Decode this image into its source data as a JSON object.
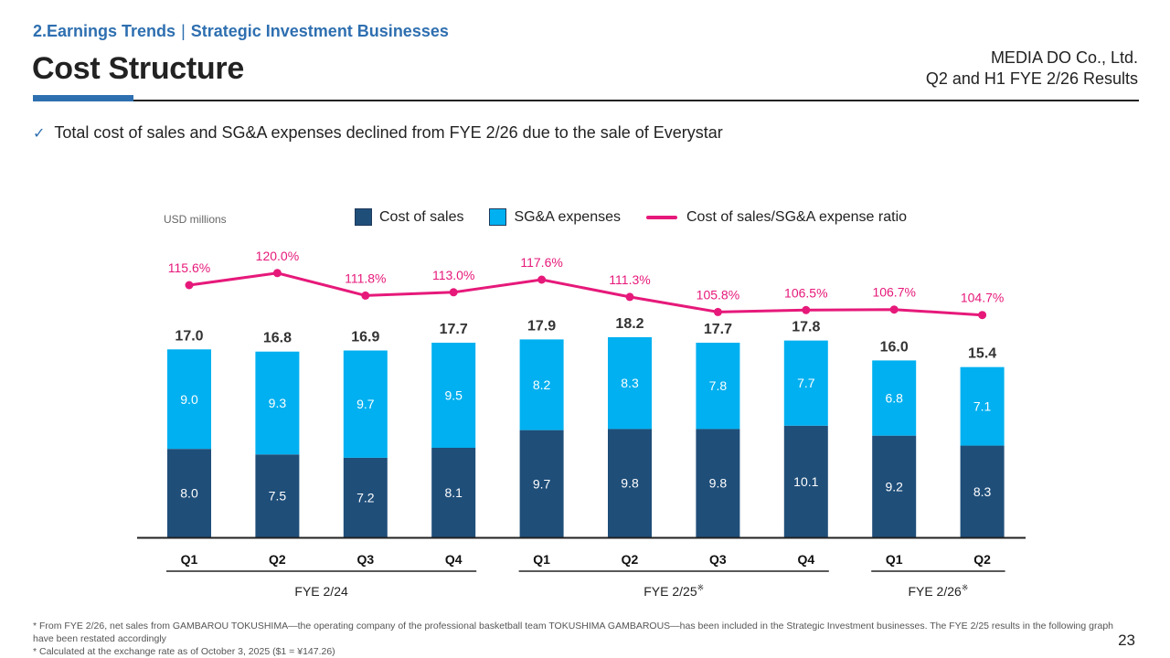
{
  "header": {
    "section": "2.Earnings Trends",
    "separator": "|",
    "subsection": "Strategic Investment Businesses",
    "title": "Cost Structure",
    "company": "MEDIA DO Co., Ltd.",
    "report": "Q2 and H1 FYE 2/26 Results"
  },
  "bullet": {
    "icon": "check-icon",
    "text": "Total cost of sales and SG&A expenses declined from FYE 2/26 due to the sale of Everystar"
  },
  "colors": {
    "accent": "#2e6fb0",
    "cost_of_sales": "#1f4e79",
    "sga": "#00b0f0",
    "ratio_line": "#e6197a"
  },
  "chart_data": {
    "type": "bar",
    "stacked": true,
    "title": "Cost Structure",
    "unit_label": "USD millions",
    "xlabel": "",
    "ylabel": "",
    "legend_position": "top",
    "grid": false,
    "categories": [
      "Q1",
      "Q2",
      "Q3",
      "Q4",
      "Q1",
      "Q2",
      "Q3",
      "Q4",
      "Q1",
      "Q2"
    ],
    "groups": [
      {
        "label": "FYE 2/24",
        "mark": "",
        "start": 0,
        "end": 3
      },
      {
        "label": "FYE 2/25",
        "mark": "※",
        "start": 4,
        "end": 7
      },
      {
        "label": "FYE 2/26",
        "mark": "※",
        "start": 8,
        "end": 9
      }
    ],
    "series": [
      {
        "name": "Cost of sales",
        "type": "bar",
        "values": [
          8.0,
          7.5,
          7.2,
          8.1,
          9.7,
          9.8,
          9.8,
          10.1,
          9.2,
          8.3
        ]
      },
      {
        "name": "SG&A expenses",
        "type": "bar",
        "values": [
          9.0,
          9.3,
          9.7,
          9.5,
          8.2,
          8.3,
          7.8,
          7.7,
          6.8,
          7.1
        ]
      },
      {
        "name": "Cost of sales/SG&A expense ratio",
        "type": "line",
        "values": [
          115.6,
          120.0,
          111.8,
          113.0,
          117.6,
          111.3,
          105.8,
          106.5,
          106.7,
          104.7
        ],
        "unit": "%"
      }
    ],
    "totals": [
      17.0,
      16.8,
      16.9,
      17.7,
      17.9,
      18.2,
      17.7,
      17.8,
      16.0,
      15.4
    ],
    "ylim": [
      0,
      20
    ],
    "ratio_ylim": [
      60,
      130
    ]
  },
  "footnotes": [
    "* From FYE 2/26, net sales from GAMBAROU TOKUSHIMA—the operating company of the professional basketball team TOKUSHIMA GAMBAROUS—has been included in the Strategic Investment businesses. The FYE 2/25 results in the following graph have been restated accordingly",
    "* Calculated at the exchange rate as of October 3, 2025 ($1 = ¥147.26)"
  ],
  "page_number": "23"
}
